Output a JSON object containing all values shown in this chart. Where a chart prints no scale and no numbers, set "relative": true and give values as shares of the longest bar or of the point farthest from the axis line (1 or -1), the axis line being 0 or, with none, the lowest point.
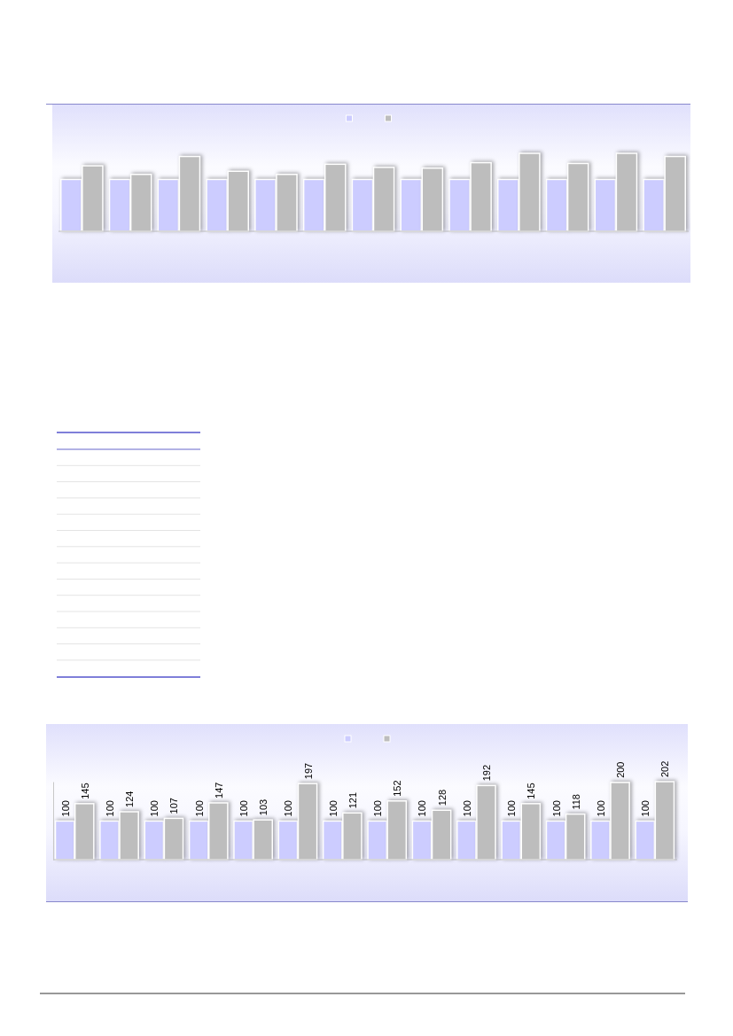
{
  "chart_data": [
    {
      "type": "bar",
      "relative": true,
      "categories": [
        null,
        null,
        null,
        null,
        null,
        null,
        null,
        null,
        null,
        null,
        null,
        null,
        null
      ],
      "series": [
        {
          "color": "#ccccff",
          "values": [
            0.665,
            0.665,
            0.665,
            0.665,
            0.665,
            0.665,
            0.665,
            0.665,
            0.665,
            0.665,
            0.665,
            0.665,
            0.665
          ]
        },
        {
          "color": "#bdbdbd",
          "values": [
            0.84,
            0.73,
            0.96,
            0.77,
            0.73,
            0.86,
            0.82,
            0.81,
            0.88,
            1,
            0.87,
            1,
            0.96
          ]
        }
      ]
    },
    {
      "type": "bar",
      "data_labels": true,
      "categories": [
        null,
        null,
        null,
        null,
        null,
        null,
        null,
        null,
        null,
        null,
        null,
        null,
        null,
        null
      ],
      "series": [
        {
          "color": "#ccccff",
          "values": [
            100,
            100,
            100,
            100,
            100,
            100,
            100,
            100,
            100,
            100,
            100,
            100,
            100,
            100
          ]
        },
        {
          "color": "#bdbdbd",
          "values": [
            145,
            124,
            107,
            147,
            103,
            197,
            121,
            152,
            128,
            192,
            145,
            118,
            200,
            202
          ]
        }
      ]
    }
  ]
}
